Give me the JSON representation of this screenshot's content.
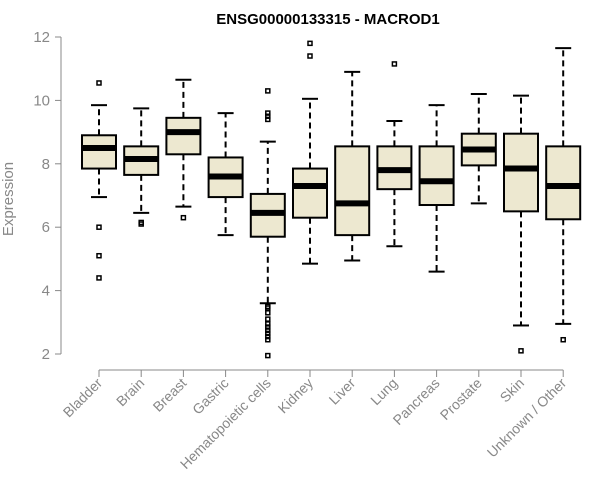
{
  "chart_data": {
    "type": "boxplot",
    "title": "ENSG00000133315 - MACROD1",
    "ylabel": "Expression",
    "xlabel": "",
    "ylim": [
      2,
      12
    ],
    "yticks": [
      2,
      4,
      6,
      8,
      10,
      12
    ],
    "grid": false,
    "box_color": "#EDE8D0",
    "categories": [
      "Bladder",
      "Brain",
      "Breast",
      "Gastric",
      "Hematopoietic cells",
      "Kidney",
      "Liver",
      "Lung",
      "Pancreas",
      "Prostate",
      "Skin",
      "Unknown / Other"
    ],
    "boxes": [
      {
        "min": 6.95,
        "q1": 7.85,
        "median": 8.5,
        "q3": 8.9,
        "max": 9.85,
        "outliers": [
          10.55,
          6.0,
          5.1,
          4.4
        ]
      },
      {
        "min": 6.45,
        "q1": 7.65,
        "median": 8.15,
        "q3": 8.55,
        "max": 9.75,
        "outliers": [
          6.15,
          6.1
        ]
      },
      {
        "min": 6.65,
        "q1": 8.3,
        "median": 9.0,
        "q3": 9.45,
        "max": 10.65,
        "outliers": [
          6.3
        ]
      },
      {
        "min": 5.75,
        "q1": 6.95,
        "median": 7.6,
        "q3": 8.2,
        "max": 9.6,
        "outliers": []
      },
      {
        "min": 3.6,
        "q1": 5.7,
        "median": 6.45,
        "q3": 7.05,
        "max": 8.7,
        "outliers": [
          10.3,
          9.6,
          9.5,
          9.4,
          3.5,
          3.45,
          3.3,
          3.1,
          2.95,
          2.85,
          2.75,
          2.65,
          2.55,
          2.45,
          1.95
        ]
      },
      {
        "min": 4.85,
        "q1": 6.3,
        "median": 7.3,
        "q3": 7.85,
        "max": 10.05,
        "outliers": [
          11.8,
          11.4
        ]
      },
      {
        "min": 4.95,
        "q1": 5.75,
        "median": 6.75,
        "q3": 8.55,
        "max": 10.9,
        "outliers": []
      },
      {
        "min": 5.4,
        "q1": 7.2,
        "median": 7.8,
        "q3": 8.55,
        "max": 9.35,
        "outliers": [
          11.15
        ]
      },
      {
        "min": 4.6,
        "q1": 6.7,
        "median": 7.45,
        "q3": 8.55,
        "max": 9.85,
        "outliers": []
      },
      {
        "min": 6.75,
        "q1": 7.95,
        "median": 8.45,
        "q3": 8.95,
        "max": 10.2,
        "outliers": []
      },
      {
        "min": 2.9,
        "q1": 6.5,
        "median": 7.85,
        "q3": 8.95,
        "max": 10.15,
        "outliers": [
          2.1
        ]
      },
      {
        "min": 2.95,
        "q1": 6.25,
        "median": 7.3,
        "q3": 8.55,
        "max": 11.65,
        "outliers": [
          2.45
        ]
      }
    ]
  }
}
